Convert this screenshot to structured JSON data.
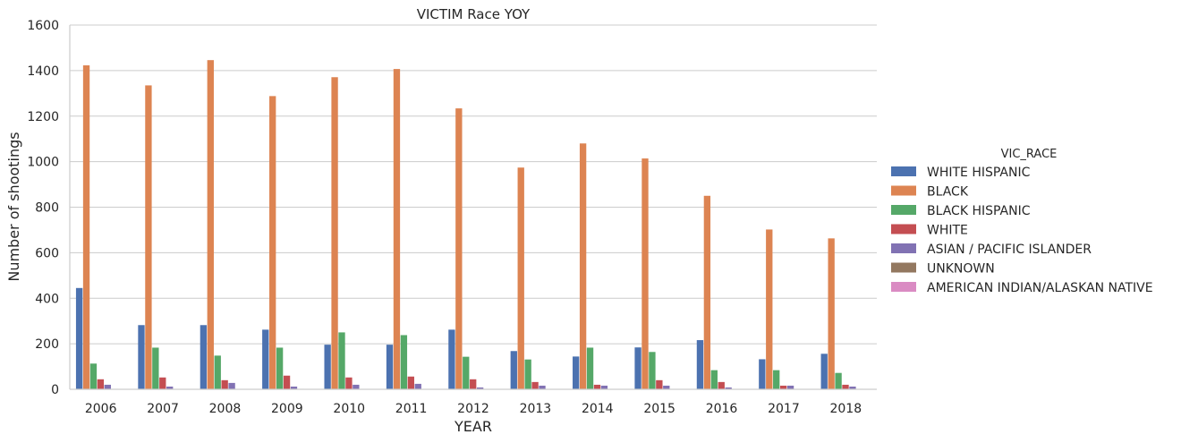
{
  "chart_data": {
    "type": "bar",
    "title": "VICTIM Race YOY",
    "xlabel": "YEAR",
    "ylabel": "Number of shootings",
    "ylim": [
      0,
      1600
    ],
    "yticks": [
      0,
      200,
      400,
      600,
      800,
      1000,
      1200,
      1400,
      1600
    ],
    "grid": true,
    "legend_position": "right",
    "legend_title": "VIC_RACE",
    "categories": [
      "2006",
      "2007",
      "2008",
      "2009",
      "2010",
      "2011",
      "2012",
      "2013",
      "2014",
      "2015",
      "2016",
      "2017",
      "2018"
    ],
    "series": [
      {
        "name": "WHITE HISPANIC",
        "color": "#4c72b0",
        "values": [
          445,
          282,
          282,
          262,
          196,
          196,
          262,
          168,
          144,
          184,
          216,
          132,
          156
        ]
      },
      {
        "name": "BLACK",
        "color": "#dd8452",
        "values": [
          1423,
          1335,
          1446,
          1288,
          1371,
          1407,
          1234,
          974,
          1080,
          1014,
          850,
          702,
          663
        ]
      },
      {
        "name": "BLACK HISPANIC",
        "color": "#55a868",
        "values": [
          113,
          183,
          148,
          183,
          250,
          238,
          143,
          131,
          183,
          164,
          84,
          84,
          72
        ]
      },
      {
        "name": "WHITE",
        "color": "#c44e52",
        "values": [
          44,
          52,
          40,
          60,
          52,
          56,
          44,
          32,
          20,
          40,
          32,
          16,
          20
        ]
      },
      {
        "name": "ASIAN / PACIFIC ISLANDER",
        "color": "#8172b3",
        "values": [
          20,
          12,
          28,
          12,
          20,
          24,
          8,
          16,
          16,
          16,
          8,
          16,
          12
        ]
      },
      {
        "name": "UNKNOWN",
        "color": "#937860",
        "values": [
          2,
          1,
          1,
          2,
          1,
          1,
          1,
          1,
          1,
          1,
          1,
          1,
          2
        ]
      },
      {
        "name": "AMERICAN INDIAN/ALASKAN NATIVE",
        "color": "#da8bc3",
        "values": [
          0,
          0,
          0,
          0,
          0,
          0,
          0,
          0,
          0,
          0,
          1,
          0,
          0
        ]
      }
    ]
  }
}
